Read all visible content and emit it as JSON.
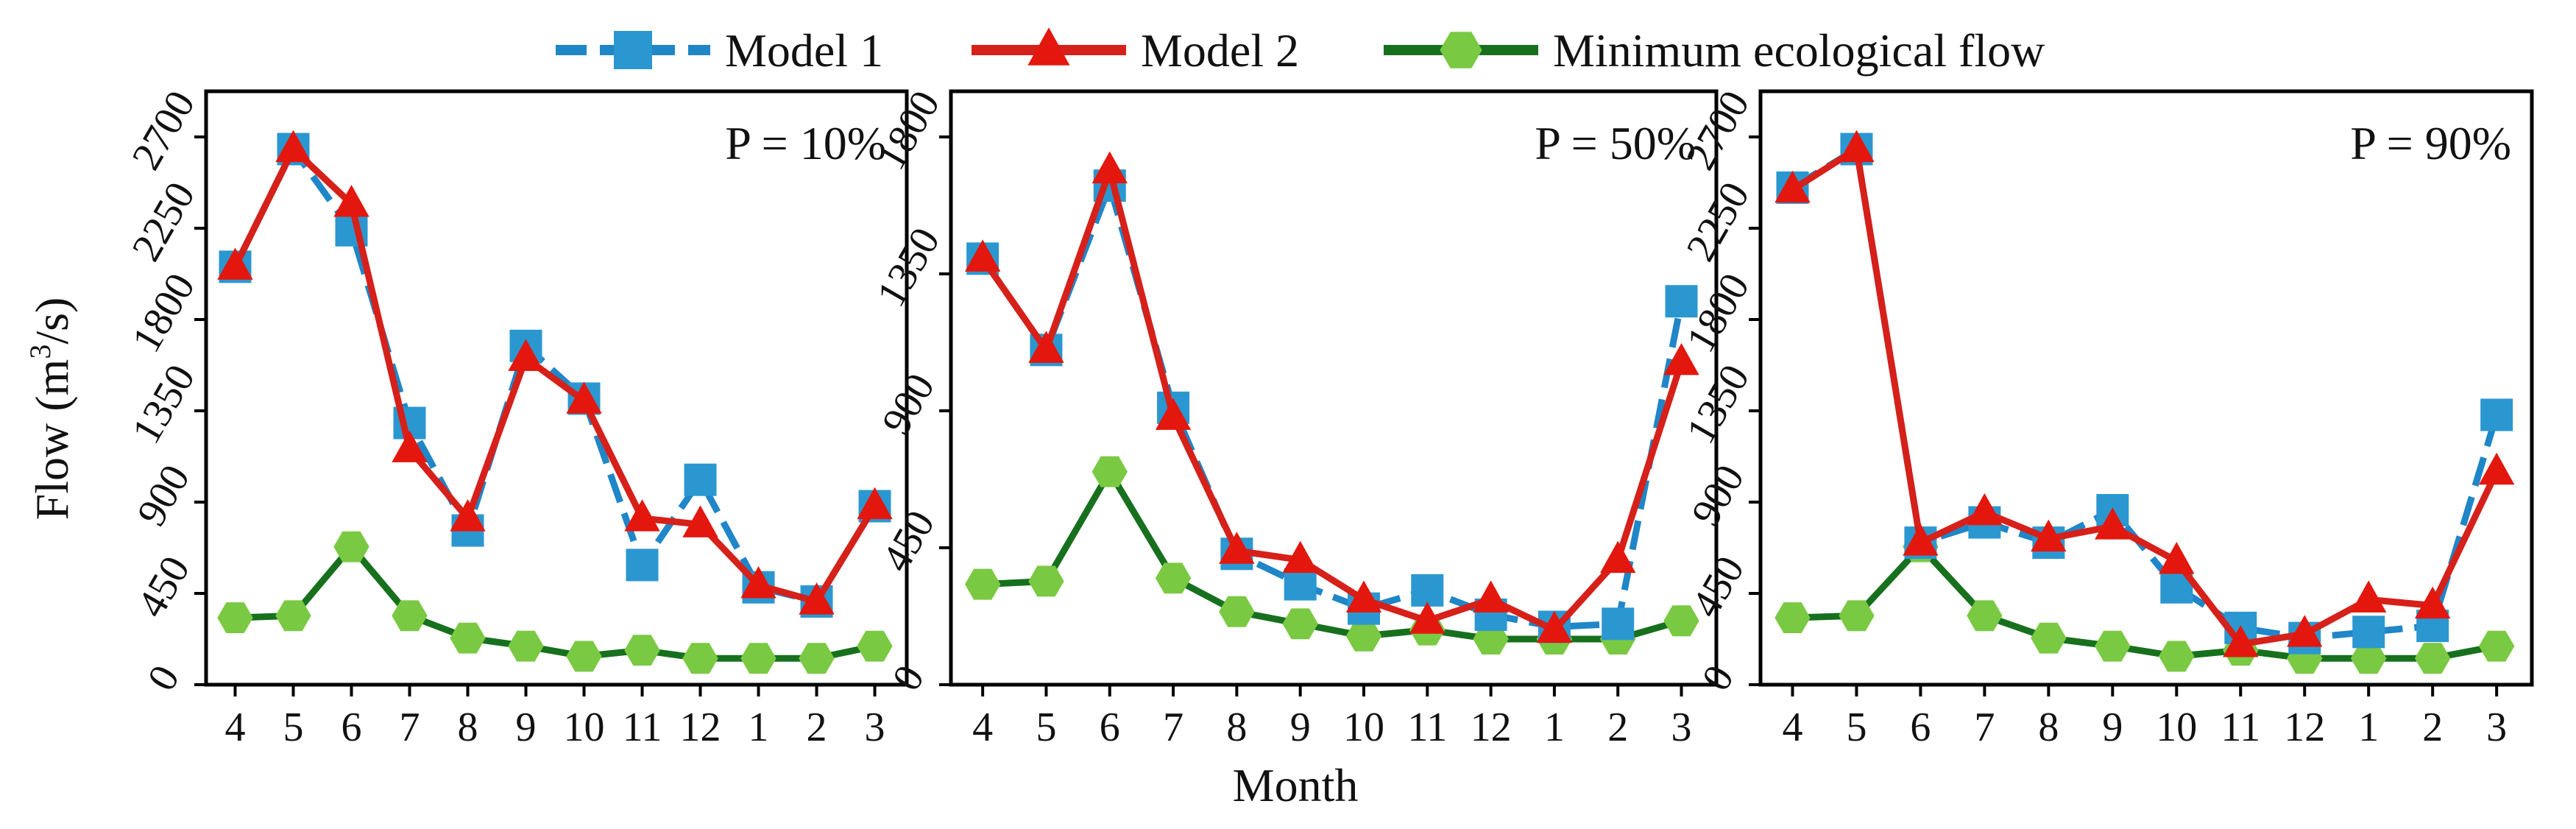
{
  "legend": {
    "placement": "top-center",
    "items": [
      {
        "label": "Model 1",
        "color": "#1f86c8",
        "marker_color": "#2b97d0",
        "marker": "square",
        "line": "dashed"
      },
      {
        "label": "Model 2",
        "color": "#d6201a",
        "marker_color": "#e3170d",
        "marker": "triangle",
        "line": "solid"
      },
      {
        "label": "Minimum ecological flow",
        "color": "#17701d",
        "marker_color": "#7ac943",
        "marker": "hexagon",
        "line": "solid"
      }
    ]
  },
  "shared_axes": {
    "xlabel": "Month",
    "ylabel_prefix": "Flow (m",
    "ylabel_sup": "3",
    "ylabel_suffix": "/s)"
  },
  "chart_data": [
    {
      "type": "line",
      "annotation": "P = 10%",
      "categories": [
        "4",
        "5",
        "6",
        "7",
        "8",
        "9",
        "10",
        "11",
        "12",
        "1",
        "2",
        "3"
      ],
      "ylim": [
        0,
        2925
      ],
      "yticks": [
        0,
        450,
        900,
        1350,
        1800,
        2250,
        2700
      ],
      "grid": false,
      "series": [
        {
          "name": "Model 1",
          "values": [
            2060,
            2640,
            2240,
            1290,
            760,
            1670,
            1410,
            590,
            1010,
            480,
            410,
            880
          ]
        },
        {
          "name": "Model 2",
          "values": [
            2060,
            2640,
            2370,
            1160,
            820,
            1610,
            1400,
            820,
            790,
            490,
            410,
            880
          ]
        },
        {
          "name": "Minimum ecological flow",
          "values": [
            330,
            340,
            680,
            340,
            230,
            190,
            140,
            170,
            130,
            130,
            130,
            190
          ]
        }
      ]
    },
    {
      "type": "line",
      "annotation": "P = 50%",
      "categories": [
        "4",
        "5",
        "6",
        "7",
        "8",
        "9",
        "10",
        "11",
        "12",
        "1",
        "2",
        "3"
      ],
      "ylim": [
        0,
        1950
      ],
      "yticks": [
        0,
        450,
        900,
        1350,
        1800
      ],
      "grid": false,
      "series": [
        {
          "name": "Model 1",
          "values": [
            1400,
            1100,
            1640,
            910,
            430,
            330,
            250,
            310,
            230,
            190,
            200,
            1260
          ]
        },
        {
          "name": "Model 2",
          "values": [
            1400,
            1100,
            1690,
            880,
            440,
            410,
            280,
            210,
            280,
            180,
            410,
            1060
          ]
        },
        {
          "name": "Minimum ecological flow",
          "values": [
            330,
            340,
            700,
            350,
            240,
            200,
            160,
            180,
            150,
            150,
            150,
            210
          ]
        }
      ]
    },
    {
      "type": "line",
      "annotation": "P = 90%",
      "categories": [
        "4",
        "5",
        "6",
        "7",
        "8",
        "9",
        "10",
        "11",
        "12",
        "1",
        "2",
        "3"
      ],
      "ylim": [
        0,
        2925
      ],
      "yticks": [
        0,
        450,
        900,
        1350,
        1800,
        2250,
        2700
      ],
      "grid": false,
      "series": [
        {
          "name": "Model 1",
          "values": [
            2450,
            2640,
            700,
            800,
            700,
            860,
            480,
            280,
            230,
            260,
            290,
            1330
          ]
        },
        {
          "name": "Model 2",
          "values": [
            2440,
            2640,
            700,
            850,
            720,
            780,
            610,
            200,
            250,
            420,
            390,
            1050
          ]
        },
        {
          "name": "Minimum ecological flow",
          "values": [
            330,
            340,
            680,
            340,
            230,
            190,
            140,
            170,
            130,
            130,
            130,
            190
          ]
        }
      ]
    }
  ]
}
